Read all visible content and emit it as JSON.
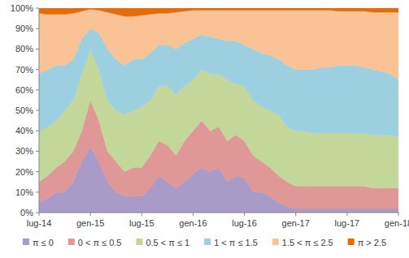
{
  "chart_data": {
    "type": "area",
    "stacked": true,
    "grid": false,
    "legend": "bottom",
    "categories": [
      "lug-14",
      null,
      null,
      null,
      null,
      null,
      "gen-15",
      null,
      null,
      null,
      null,
      null,
      "lug-15",
      null,
      null,
      null,
      null,
      null,
      "gen-16",
      null,
      null,
      null,
      null,
      null,
      "lug-16",
      null,
      null,
      null,
      null,
      null,
      "gen-17",
      null,
      null,
      null,
      null,
      null,
      "lug-17",
      null,
      null,
      null,
      null,
      null,
      "gen-18"
    ],
    "ylim": [
      0,
      100
    ],
    "yticks": [
      {
        "value": 0,
        "label": "0%"
      },
      {
        "value": 10,
        "label": "10%"
      },
      {
        "value": 20,
        "label": "20%"
      },
      {
        "value": 30,
        "label": "30%"
      },
      {
        "value": 40,
        "label": "40%"
      },
      {
        "value": 50,
        "label": "50%"
      },
      {
        "value": 60,
        "label": "60%"
      },
      {
        "value": 70,
        "label": "70%"
      },
      {
        "value": 80,
        "label": "80%"
      },
      {
        "value": 90,
        "label": "90%"
      },
      {
        "value": 100,
        "label": "100%"
      }
    ],
    "series": [
      {
        "name": "π ≤ 0",
        "color": "#a99bc8",
        "values": [
          5,
          7,
          10,
          10,
          15,
          25,
          32,
          25,
          15,
          10,
          8,
          8,
          8,
          12,
          18,
          15,
          12,
          15,
          19,
          22,
          20,
          22,
          15,
          18,
          17,
          10,
          10,
          8,
          5,
          3,
          2,
          2,
          2,
          2,
          2,
          2,
          2,
          2,
          2,
          2,
          2,
          2,
          2
        ]
      },
      {
        "name": "0 < π  ≤ 0.5",
        "color": "#df9896",
        "values": [
          10,
          11,
          12,
          15,
          15,
          15,
          23,
          20,
          15,
          15,
          12,
          14,
          14,
          16,
          17,
          18,
          16,
          20,
          21,
          23,
          20,
          20,
          20,
          20,
          18,
          18,
          15,
          14,
          13,
          12,
          11,
          11,
          11,
          11,
          11,
          11,
          11,
          11,
          11,
          10,
          10,
          10,
          10
        ]
      },
      {
        "name": "0.5 < π  ≤ 1",
        "color": "#c4d79b",
        "values": [
          25,
          24,
          23,
          25,
          25,
          28,
          25,
          25,
          25,
          25,
          28,
          28,
          30,
          27,
          27,
          29,
          30,
          27,
          25,
          25,
          28,
          26,
          30,
          25,
          27,
          27,
          27,
          28,
          30,
          27,
          27,
          27,
          26,
          26,
          26,
          26,
          26,
          26,
          26,
          26,
          26,
          26,
          25
        ]
      },
      {
        "name": "1 < π  ≤ 1.5",
        "color": "#9ccfdf",
        "values": [
          28,
          28,
          27,
          22,
          20,
          17,
          10,
          18,
          25,
          25,
          24,
          25,
          23,
          23,
          20,
          20,
          22,
          21,
          20,
          17,
          18,
          17,
          19,
          21,
          20,
          25,
          26,
          27,
          27,
          30,
          30,
          30,
          31,
          32,
          32,
          33,
          33,
          33,
          32,
          32,
          31,
          30,
          28
        ]
      },
      {
        "name": "1.5 < π  ≤ 2.5",
        "color": "#fac395",
        "values": [
          29.5,
          27,
          25,
          25,
          22.5,
          13.5,
          9.5,
          11,
          18,
          22,
          24,
          21,
          21.5,
          19,
          15.5,
          15.5,
          18,
          15.5,
          14,
          12,
          13,
          14,
          15,
          15,
          17,
          19,
          21,
          22,
          24,
          27,
          29,
          29,
          29,
          28,
          28,
          26.5,
          26.5,
          26.5,
          27.5,
          28,
          29,
          30,
          33
        ]
      },
      {
        "name": "π > 2.5",
        "color": "#e46c0a",
        "values": [
          2.5,
          3,
          3,
          3,
          2.5,
          1.5,
          0.5,
          1,
          2,
          3,
          4,
          4,
          3.5,
          3,
          2.5,
          2.5,
          2,
          1.5,
          1,
          1,
          1,
          1,
          1,
          1,
          1,
          1,
          1,
          1,
          1,
          1,
          1,
          1,
          1,
          1,
          1,
          1.5,
          1.5,
          1.5,
          1.5,
          2,
          2,
          2,
          2
        ]
      }
    ]
  }
}
